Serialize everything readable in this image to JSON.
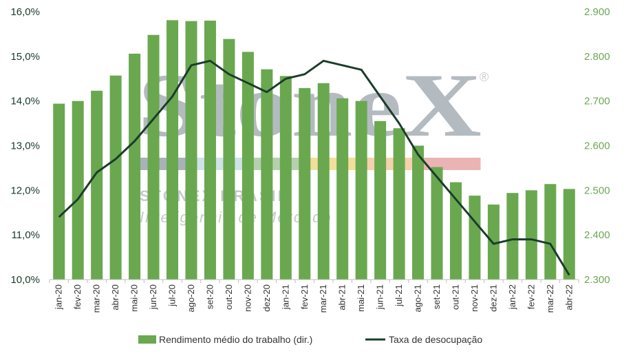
{
  "chart_data": {
    "type": "bar+line",
    "categories": [
      "jan-20",
      "fev-20",
      "mar-20",
      "abr-20",
      "mai-20",
      "jun-20",
      "jul-20",
      "ago-20",
      "set-20",
      "out-20",
      "nov-20",
      "dez-20",
      "jan-21",
      "fev-21",
      "mar-21",
      "abr-21",
      "mai-21",
      "jun-21",
      "jul-21",
      "ago-21",
      "set-21",
      "out-21",
      "nov-21",
      "dez-21",
      "jan-22",
      "fev-22",
      "mar-22",
      "abr-22"
    ],
    "series": [
      {
        "name": "Rendimento médio do trabalho (dir.)",
        "kind": "bar",
        "axis": "right",
        "values": [
          2694,
          2700,
          2723,
          2757,
          2806,
          2848,
          2881,
          2879,
          2880,
          2839,
          2810,
          2771,
          2756,
          2729,
          2740,
          2706,
          2700,
          2655,
          2639,
          2600,
          2552,
          2518,
          2488,
          2468,
          2494,
          2500,
          2514,
          2503
        ]
      },
      {
        "name": "Taxa de desocupação",
        "kind": "line",
        "axis": "left",
        "values": [
          11.4,
          11.8,
          12.4,
          12.7,
          13.1,
          13.6,
          14.1,
          14.8,
          14.9,
          14.6,
          14.4,
          14.2,
          14.5,
          14.6,
          14.9,
          14.8,
          14.7,
          14.1,
          13.5,
          12.8,
          12.3,
          11.8,
          11.3,
          10.8,
          10.9,
          10.9,
          10.8,
          10.1
        ]
      }
    ],
    "y_left": {
      "min": 10.0,
      "max": 16.0,
      "ticks": [
        "10,0%",
        "11,0%",
        "12,0%",
        "13,0%",
        "14,0%",
        "15,0%",
        "16,0%"
      ]
    },
    "y_right": {
      "min": 2300,
      "max": 2900,
      "ticks": [
        "2.300",
        "2.400",
        "2.500",
        "2.600",
        "2.700",
        "2.800",
        "2.900"
      ]
    },
    "legend_position": "bottom",
    "grid": false
  },
  "watermark": {
    "logo_text": "StoneX",
    "registered": "®",
    "brand_line": "STONEX BRASIL",
    "tagline": "Inteligência de Mercado"
  },
  "colors": {
    "bar": "#6aa84f",
    "line": "#1b3d2b",
    "left_axis_text": "#1a3a2a",
    "right_axis_text": "#6aa84f",
    "stripe": [
      "#9aa5ad",
      "#c8dde3",
      "#a8c8a0",
      "#f0d98a",
      "#f3c9a0",
      "#e8a7a7"
    ]
  }
}
